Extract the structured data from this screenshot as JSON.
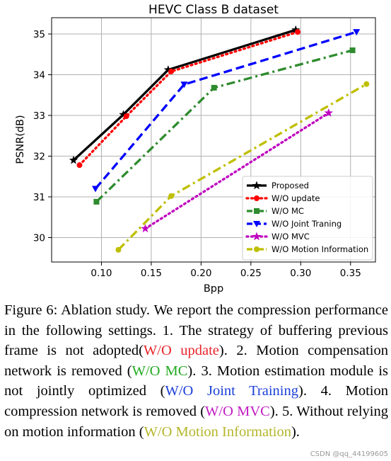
{
  "chart_data": {
    "type": "line",
    "title": "HEVC Class B dataset",
    "xlabel": "Bpp",
    "ylabel": "PSNR(dB)",
    "xlim": [
      0.05,
      0.375
    ],
    "ylim": [
      29.4,
      35.4
    ],
    "xticks": [
      "0.10",
      "0.15",
      "0.20",
      "0.25",
      "0.30",
      "0.35"
    ],
    "yticks": [
      "30",
      "31",
      "32",
      "33",
      "34",
      "35"
    ],
    "grid": true,
    "legend_position": "lower-right",
    "series": [
      {
        "name": "Proposed",
        "color": "#000000",
        "marker": "star",
        "linestyle": "solid",
        "x": [
          0.072,
          0.122,
          0.167,
          0.295
        ],
        "y": [
          31.9,
          33.02,
          34.12,
          35.1
        ]
      },
      {
        "name": "W/O update",
        "color": "#ff0000",
        "marker": "circle",
        "linestyle": "dotted",
        "x": [
          0.078,
          0.125,
          0.17,
          0.297
        ],
        "y": [
          31.78,
          32.98,
          34.08,
          35.05
        ]
      },
      {
        "name": "W/O MC",
        "color": "#2e8b2e",
        "marker": "square",
        "linestyle": "dashdot",
        "x": [
          0.095,
          0.213,
          0.352
        ],
        "y": [
          30.88,
          33.68,
          34.6
        ]
      },
      {
        "name": "W/O Joint Traning",
        "color": "#0000ff",
        "marker": "triangle-down",
        "linestyle": "dashed",
        "x": [
          0.094,
          0.183,
          0.356
        ],
        "y": [
          31.2,
          33.76,
          35.05
        ]
      },
      {
        "name": "W/O MVC",
        "color": "#bf00bf",
        "marker": "star",
        "linestyle": "dotted",
        "x": [
          0.144,
          0.328
        ],
        "y": [
          30.22,
          33.06
        ]
      },
      {
        "name": "W/O Motion Information",
        "color": "#bfbf00",
        "marker": "circle",
        "linestyle": "dashdot",
        "x": [
          0.117,
          0.17,
          0.366
        ],
        "y": [
          29.7,
          31.02,
          33.77
        ]
      }
    ]
  },
  "caption": {
    "p1": "Figure 6: Ablation study. We report the compression performance in the following settings. 1. The strategy of buffering previous frame is not adopted(",
    "t1": "W/O update",
    "p2": "). 2. Motion compensation network is removed (",
    "t2": "W/O MC",
    "p3": "). 3. Motion estimation module is not jointly optimized (",
    "t3": "W/O Joint Training",
    "p4": "). 4. Motion compression network is removed (",
    "t4": "W/O MVC",
    "p5": "). 5. Without relying on motion information (",
    "t5": "W/O Motion Information",
    "p6": ")."
  },
  "watermark": "CSDN @qq_44199605"
}
